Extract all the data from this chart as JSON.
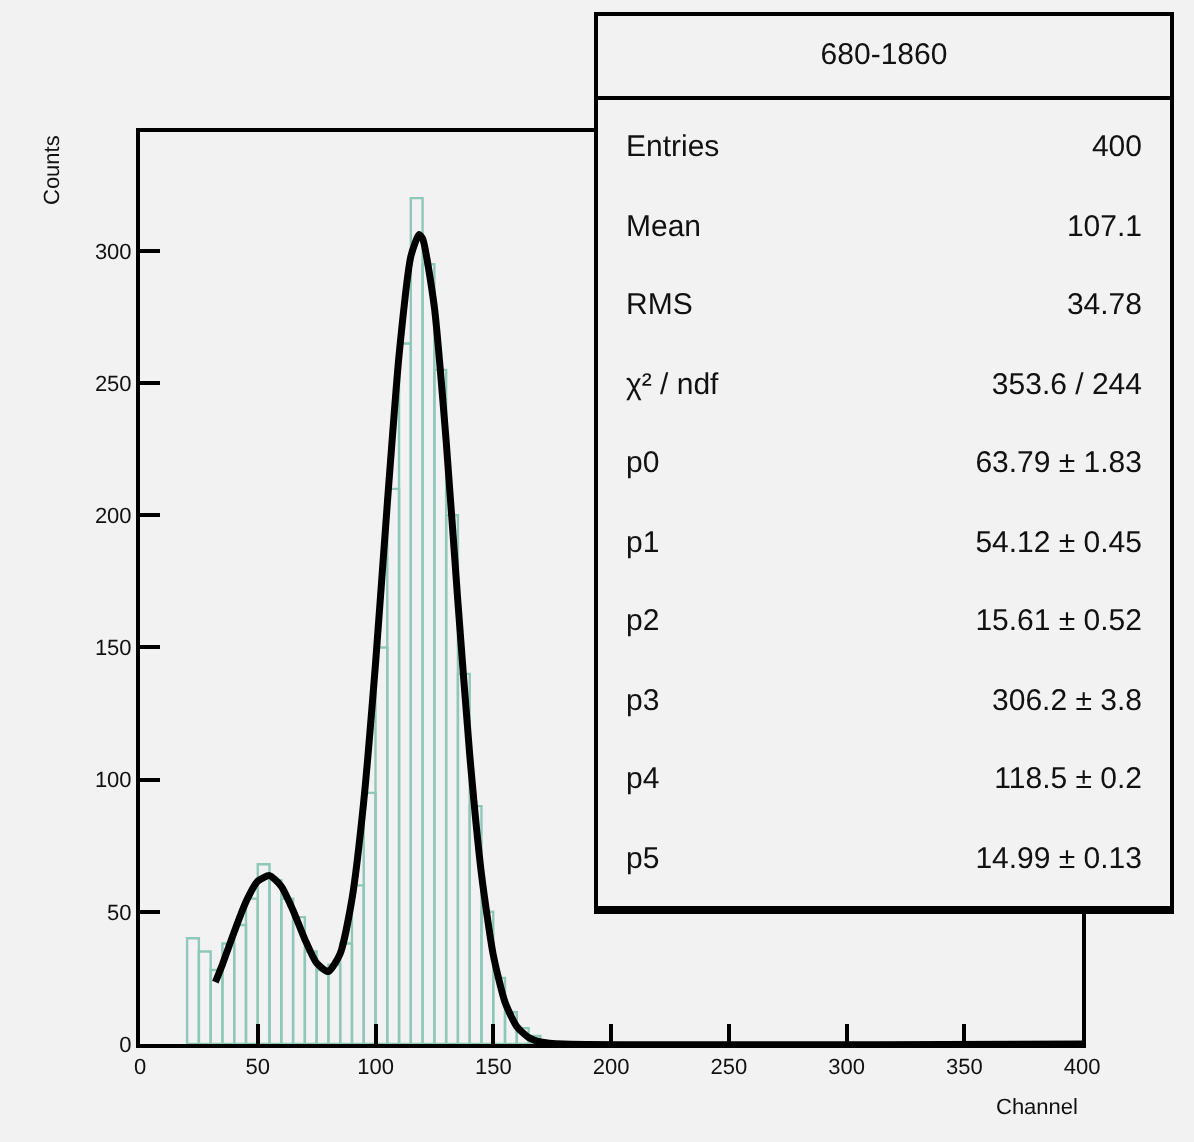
{
  "chart_data": {
    "type": "histogram",
    "title": "680-1860",
    "xlabel": "Channel",
    "ylabel": "Counts",
    "bins": [
      20,
      25,
      30,
      35,
      40,
      45,
      50,
      55,
      60,
      65,
      70,
      75,
      80,
      85,
      90,
      95,
      100,
      105,
      110,
      115,
      120,
      125,
      130,
      135,
      140,
      145,
      150,
      155,
      160,
      165,
      170,
      175
    ],
    "values": [
      40,
      35,
      28,
      38,
      45,
      55,
      68,
      62,
      55,
      48,
      35,
      28,
      30,
      38,
      60,
      95,
      150,
      210,
      265,
      320,
      295,
      255,
      200,
      140,
      90,
      50,
      25,
      12,
      6,
      3,
      1
    ],
    "color": "#8fc8b8",
    "series": [
      {
        "type": "line",
        "color": "#000000",
        "x": [
          32,
          35,
          40,
          45,
          50,
          55,
          60,
          65,
          70,
          75,
          80,
          85,
          90,
          95,
          100,
          105,
          110,
          115,
          118.5,
          120,
          125,
          130,
          135,
          140,
          145,
          150,
          155,
          160,
          165,
          170,
          180,
          400
        ],
        "values": [
          23.4,
          30.1,
          42.4,
          53.8,
          61.6,
          63.7,
          59.6,
          50.5,
          39.6,
          30.6,
          27.4,
          34.2,
          54.8,
          91.7,
          143.8,
          204.3,
          260.6,
          297.9,
          306.2,
          304.7,
          278.7,
          228.2,
          167.1,
          109.5,
          64.2,
          33.7,
          15.8,
          6.6,
          2.5,
          0.8,
          0,
          0
        ]
      }
    ],
    "xlim": [
      0,
      400
    ],
    "xticks": [
      0,
      50,
      100,
      150,
      200,
      250,
      300,
      350,
      400
    ],
    "ylim": [
      0,
      345
    ],
    "yticks": [
      0,
      50,
      100,
      150,
      200,
      250,
      300
    ],
    "grid": false,
    "annotations": [
      "Entries",
      "400",
      "Mean",
      "107.1",
      "RMS",
      "34.78",
      "χ² / ndf",
      "353.6 / 244",
      "p0",
      "63.79 ± 1.83",
      "p1",
      "54.12 ± 0.45",
      "p2",
      "15.61 ± 0.52",
      "p3",
      "306.2 ± 3.8",
      "p4",
      "118.5 ± 0.2",
      "p5",
      "14.99 ± 0.13"
    ]
  }
}
